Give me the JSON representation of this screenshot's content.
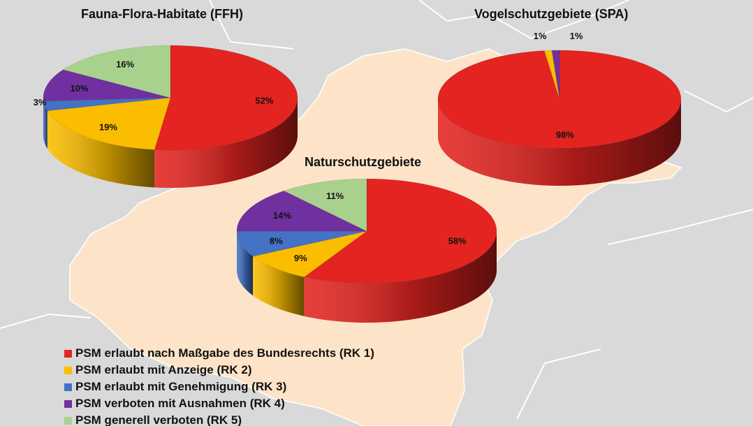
{
  "categories": [
    {
      "key": "rk1",
      "label": "PSM erlaubt nach Maßgabe des Bundesrechts (RK 1)",
      "color": "#e32420"
    },
    {
      "key": "rk2",
      "label": "PSM erlaubt mit Anzeige (RK 2)",
      "color": "#fbbd00"
    },
    {
      "key": "rk3",
      "label": "PSM erlaubt mit Genehmigung (RK 3)",
      "color": "#4472c4"
    },
    {
      "key": "rk4",
      "label": "PSM verboten mit Ausnahmen (RK 4)",
      "color": "#7030a0"
    },
    {
      "key": "rk5",
      "label": "PSM generell verboten (RK 5)",
      "color": "#a9d18e"
    }
  ],
  "chart_data": [
    {
      "type": "pie",
      "title": "Fauna-Flora-Habitate (FFH)",
      "labels": [
        "PSM erlaubt nach Maßgabe des Bundesrechts (RK 1)",
        "PSM erlaubt mit Anzeige (RK 2)",
        "PSM erlaubt mit Genehmigung (RK 3)",
        "PSM verboten mit Ausnahmen (RK 4)",
        "PSM generell verboten (RK 5)"
      ],
      "values": [
        52,
        19,
        3,
        10,
        16
      ],
      "value_labels": [
        "52%",
        "19%",
        "3%",
        "10%",
        "16%"
      ]
    },
    {
      "type": "pie",
      "title": "Vogelschutzgebiete (SPA)",
      "labels": [
        "PSM erlaubt nach Maßgabe des Bundesrechts (RK 1)",
        "PSM erlaubt mit Anzeige (RK 2)",
        "PSM verboten mit Ausnahmen (RK 4)"
      ],
      "values": [
        98,
        1,
        1
      ],
      "value_labels": [
        "98%",
        "1%",
        "1%"
      ]
    },
    {
      "type": "pie",
      "title": "Naturschutzgebiete",
      "labels": [
        "PSM erlaubt nach Maßgabe des Bundesrechts (RK 1)",
        "PSM erlaubt mit Anzeige (RK 2)",
        "PSM erlaubt mit Genehmigung (RK 3)",
        "PSM verboten mit Ausnahmen (RK 4)",
        "PSM generell verboten (RK 5)"
      ],
      "values": [
        58,
        9,
        8,
        14,
        11
      ],
      "value_labels": [
        "58%",
        "9%",
        "8%",
        "14%",
        "11%"
      ]
    }
  ],
  "map_colors": {
    "land": "#fde4c8",
    "surroundings": "#d9d9d9",
    "borders": "#ffffff"
  }
}
